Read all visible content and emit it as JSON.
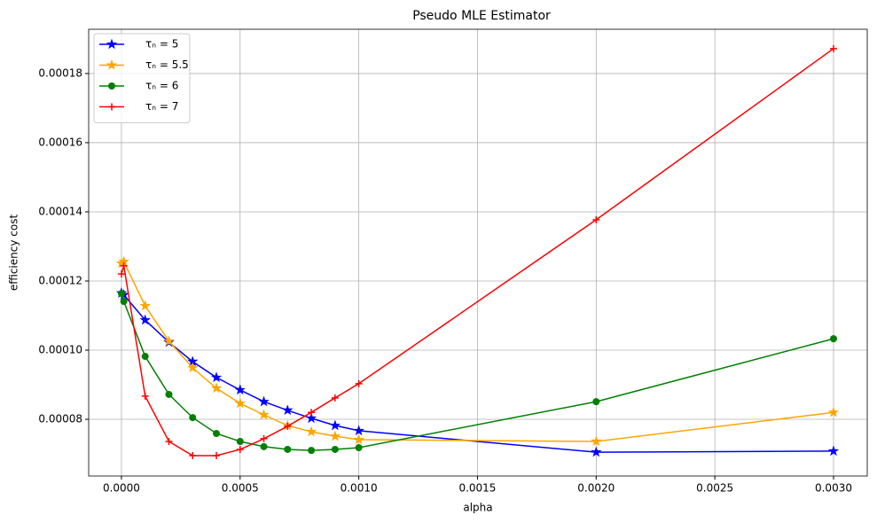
{
  "chart_data": {
    "type": "line",
    "title": "Pseudo MLE Estimator",
    "xlabel": "alpha",
    "ylabel": "efficiency cost",
    "x": [
      0,
      1e-05,
      0.0001,
      0.0002,
      0.0003,
      0.0004,
      0.0005,
      0.0006,
      0.0007,
      0.0008,
      0.0009,
      0.001,
      0.002,
      0.003
    ],
    "series": [
      {
        "name": "τₙ = 5",
        "color": "#0000ff",
        "marker": "star",
        "values": [
          0.0001165,
          0.000116,
          0.0001087,
          0.0001023,
          9.67e-05,
          9.21e-05,
          8.85e-05,
          8.51e-05,
          8.26e-05,
          8.03e-05,
          7.82e-05,
          7.67e-05,
          7.05e-05,
          7.08e-05
        ]
      },
      {
        "name": "τₙ = 5.5",
        "color": "#ffa500",
        "marker": "star",
        "values": [
          0.0001251,
          0.0001256,
          0.0001128,
          0.0001026,
          9.49e-05,
          8.9e-05,
          8.46e-05,
          8.13e-05,
          7.82e-05,
          7.64e-05,
          7.51e-05,
          7.41e-05,
          7.36e-05,
          8.2e-05
        ]
      },
      {
        "name": "τₙ = 6",
        "color": "#008000",
        "marker": "circle",
        "values": [
          0.0001164,
          0.0001141,
          9.82e-05,
          8.72e-05,
          8.05e-05,
          7.59e-05,
          7.36e-05,
          7.21e-05,
          7.13e-05,
          7.1e-05,
          7.13e-05,
          7.18e-05,
          8.51e-05,
          0.0001033
        ]
      },
      {
        "name": "τₙ = 7",
        "color": "#ff0000",
        "marker": "plus",
        "values": [
          0.000122,
          0.0001244,
          8.67e-05,
          7.36e-05,
          6.95e-05,
          6.95e-05,
          7.13e-05,
          7.44e-05,
          7.8e-05,
          8.2e-05,
          8.62e-05,
          9.03e-05,
          0.0001377,
          0.0001872
        ]
      }
    ],
    "xlim": [
      -0.000138,
      0.003142
    ],
    "ylim": [
      6.36e-05,
      0.0001928
    ],
    "xticks": [
      {
        "value": 0,
        "label": "0.0000"
      },
      {
        "value": 0.0005,
        "label": "0.0005"
      },
      {
        "value": 0.001,
        "label": "0.0010"
      },
      {
        "value": 0.0015,
        "label": "0.0015"
      },
      {
        "value": 0.002,
        "label": "0.0020"
      },
      {
        "value": 0.0025,
        "label": "0.0025"
      },
      {
        "value": 0.003,
        "label": "0.0030"
      }
    ],
    "yticks": [
      {
        "value": 8e-05,
        "label": "0.00008"
      },
      {
        "value": 0.0001,
        "label": "0.00010"
      },
      {
        "value": 0.00012,
        "label": "0.00012"
      },
      {
        "value": 0.00014,
        "label": "0.00014"
      },
      {
        "value": 0.00016,
        "label": "0.00016"
      },
      {
        "value": 0.00018,
        "label": "0.00018"
      }
    ],
    "grid": true,
    "legend": "upper left"
  }
}
